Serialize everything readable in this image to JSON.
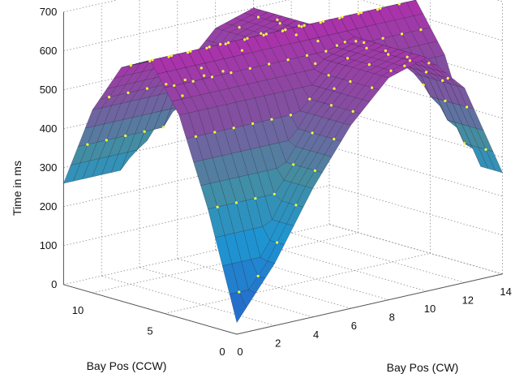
{
  "chart_data": {
    "type": "surface",
    "zlabel": "Time in ms",
    "xlabel": "Bay Pos (CW)",
    "ylabel": "Bay Pos (CCW)",
    "zlim": [
      0,
      700
    ],
    "z_ticks": [
      "0",
      "100",
      "200",
      "300",
      "400",
      "500",
      "600",
      "700"
    ],
    "cw_ticks": [
      "0",
      "2",
      "4",
      "6",
      "8",
      "10",
      "12",
      "14"
    ],
    "ccw_ticks": [
      "0",
      "5",
      "10"
    ],
    "grid": true,
    "surface_profile": {
      "description_values_ms": "time along CCW axis at CW=0 and along CW axis at CCW=0",
      "ccw_positions": [
        0,
        2,
        4,
        6,
        8,
        10,
        12
      ],
      "ccw_time_ms": [
        30,
        300,
        520,
        640,
        600,
        470,
        260
      ],
      "cw_positions": [
        0,
        2,
        4,
        6,
        8,
        10,
        12,
        14
      ],
      "cw_time_ms": [
        30,
        160,
        330,
        470,
        570,
        600,
        500,
        260
      ]
    }
  }
}
